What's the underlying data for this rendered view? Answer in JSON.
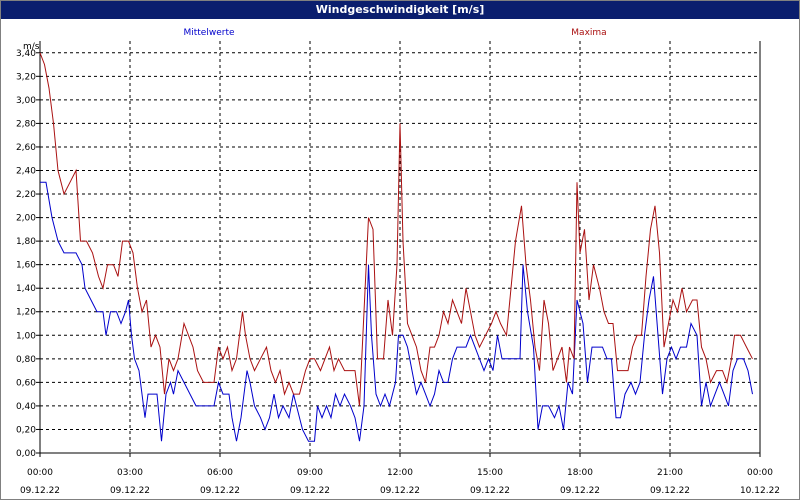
{
  "window": {
    "title": "Windgeschwindigkeit [m/s]"
  },
  "colors": {
    "mean": "#0000cc",
    "max": "#aa1111",
    "grid": "#000000",
    "title_bg": "#0a1e6e"
  },
  "chart_data": {
    "type": "line",
    "title": "Windgeschwindigkeit [m/s]",
    "ylabel": "m/s",
    "xlabel": "",
    "ylim": [
      0,
      3.5
    ],
    "xlim_hours": [
      0,
      24
    ],
    "grid": true,
    "legend_placement": "top",
    "y_ticks": [
      "0,00",
      "0,20",
      "0,40",
      "0,60",
      "0,80",
      "1,00",
      "1,20",
      "1,40",
      "1,60",
      "1,80",
      "2,00",
      "2,20",
      "2,40",
      "2,60",
      "2,80",
      "3,00",
      "3,20",
      "3,40"
    ],
    "x_ticks": [
      {
        "time": "00:00",
        "date": "09.12.22"
      },
      {
        "time": "03:00",
        "date": "09.12.22"
      },
      {
        "time": "06:00",
        "date": "09.12.22"
      },
      {
        "time": "09:00",
        "date": "09.12.22"
      },
      {
        "time": "12:00",
        "date": "09.12.22"
      },
      {
        "time": "15:00",
        "date": "09.12.22"
      },
      {
        "time": "18:00",
        "date": "09.12.22"
      },
      {
        "time": "21:00",
        "date": "09.12.22"
      },
      {
        "time": "00:00",
        "date": "10.12.22"
      }
    ],
    "series": [
      {
        "name": "Mittelwerte",
        "color": "#0000cc",
        "points": [
          [
            0,
            2.3
          ],
          [
            0.2,
            2.3
          ],
          [
            0.4,
            2.0
          ],
          [
            0.6,
            1.8
          ],
          [
            0.8,
            1.7
          ],
          [
            1.2,
            1.7
          ],
          [
            1.4,
            1.6
          ],
          [
            1.5,
            1.4
          ],
          [
            1.7,
            1.3
          ],
          [
            1.9,
            1.2
          ],
          [
            2.1,
            1.2
          ],
          [
            2.2,
            1.0
          ],
          [
            2.35,
            1.2
          ],
          [
            2.55,
            1.2
          ],
          [
            2.7,
            1.1
          ],
          [
            2.85,
            1.2
          ],
          [
            2.95,
            1.3
          ],
          [
            3.05,
            1.0
          ],
          [
            3.15,
            0.8
          ],
          [
            3.3,
            0.7
          ],
          [
            3.5,
            0.3
          ],
          [
            3.6,
            0.5
          ],
          [
            3.75,
            0.5
          ],
          [
            3.9,
            0.5
          ],
          [
            4.05,
            0.1
          ],
          [
            4.2,
            0.5
          ],
          [
            4.35,
            0.6
          ],
          [
            4.45,
            0.5
          ],
          [
            4.6,
            0.7
          ],
          [
            4.8,
            0.6
          ],
          [
            5.0,
            0.5
          ],
          [
            5.2,
            0.4
          ],
          [
            5.5,
            0.4
          ],
          [
            5.8,
            0.4
          ],
          [
            5.95,
            0.6
          ],
          [
            6.1,
            0.5
          ],
          [
            6.3,
            0.5
          ],
          [
            6.4,
            0.3
          ],
          [
            6.55,
            0.1
          ],
          [
            6.7,
            0.3
          ],
          [
            6.9,
            0.7
          ],
          [
            7.0,
            0.6
          ],
          [
            7.15,
            0.4
          ],
          [
            7.35,
            0.3
          ],
          [
            7.5,
            0.2
          ],
          [
            7.65,
            0.3
          ],
          [
            7.8,
            0.5
          ],
          [
            7.95,
            0.3
          ],
          [
            8.1,
            0.4
          ],
          [
            8.3,
            0.3
          ],
          [
            8.45,
            0.5
          ],
          [
            8.55,
            0.4
          ],
          [
            8.75,
            0.2
          ],
          [
            8.95,
            0.1
          ],
          [
            9.05,
            0.1
          ],
          [
            9.15,
            0.1
          ],
          [
            9.25,
            0.4
          ],
          [
            9.4,
            0.3
          ],
          [
            9.55,
            0.4
          ],
          [
            9.7,
            0.3
          ],
          [
            9.85,
            0.5
          ],
          [
            10.0,
            0.4
          ],
          [
            10.15,
            0.5
          ],
          [
            10.35,
            0.4
          ],
          [
            10.5,
            0.3
          ],
          [
            10.65,
            0.1
          ],
          [
            10.8,
            0.4
          ],
          [
            10.95,
            1.6
          ],
          [
            11.05,
            1.0
          ],
          [
            11.2,
            0.5
          ],
          [
            11.35,
            0.4
          ],
          [
            11.5,
            0.5
          ],
          [
            11.65,
            0.4
          ],
          [
            11.85,
            0.6
          ],
          [
            11.95,
            1.0
          ],
          [
            12.1,
            1.0
          ],
          [
            12.25,
            0.9
          ],
          [
            12.4,
            0.7
          ],
          [
            12.55,
            0.5
          ],
          [
            12.7,
            0.6
          ],
          [
            12.85,
            0.5
          ],
          [
            13.0,
            0.4
          ],
          [
            13.15,
            0.5
          ],
          [
            13.3,
            0.7
          ],
          [
            13.45,
            0.6
          ],
          [
            13.6,
            0.6
          ],
          [
            13.75,
            0.8
          ],
          [
            13.9,
            0.9
          ],
          [
            14.05,
            0.9
          ],
          [
            14.2,
            0.9
          ],
          [
            14.35,
            1.0
          ],
          [
            14.5,
            0.9
          ],
          [
            14.65,
            0.8
          ],
          [
            14.8,
            0.7
          ],
          [
            14.95,
            0.8
          ],
          [
            15.1,
            0.7
          ],
          [
            15.25,
            1.0
          ],
          [
            15.4,
            0.8
          ],
          [
            15.6,
            0.8
          ],
          [
            15.75,
            0.8
          ],
          [
            15.9,
            0.8
          ],
          [
            16.0,
            0.8
          ],
          [
            16.1,
            1.6
          ],
          [
            16.25,
            1.2
          ],
          [
            16.45,
            0.9
          ],
          [
            16.6,
            0.2
          ],
          [
            16.75,
            0.4
          ],
          [
            16.95,
            0.4
          ],
          [
            17.15,
            0.3
          ],
          [
            17.3,
            0.4
          ],
          [
            17.45,
            0.2
          ],
          [
            17.6,
            0.6
          ],
          [
            17.75,
            0.5
          ],
          [
            17.9,
            1.3
          ],
          [
            18.1,
            1.1
          ],
          [
            18.25,
            0.6
          ],
          [
            18.4,
            0.9
          ],
          [
            18.55,
            0.9
          ],
          [
            18.75,
            0.9
          ],
          [
            18.9,
            0.8
          ],
          [
            19.05,
            0.8
          ],
          [
            19.2,
            0.3
          ],
          [
            19.35,
            0.3
          ],
          [
            19.5,
            0.5
          ],
          [
            19.7,
            0.6
          ],
          [
            19.85,
            0.5
          ],
          [
            20.0,
            0.6
          ],
          [
            20.15,
            1.0
          ],
          [
            20.3,
            1.3
          ],
          [
            20.45,
            1.5
          ],
          [
            20.6,
            1.0
          ],
          [
            20.75,
            0.5
          ],
          [
            20.9,
            0.8
          ],
          [
            21.05,
            0.9
          ],
          [
            21.2,
            0.8
          ],
          [
            21.35,
            0.9
          ],
          [
            21.55,
            0.9
          ],
          [
            21.7,
            1.1
          ],
          [
            21.9,
            1.0
          ],
          [
            22.05,
            0.4
          ],
          [
            22.2,
            0.6
          ],
          [
            22.35,
            0.4
          ],
          [
            22.5,
            0.5
          ],
          [
            22.65,
            0.6
          ],
          [
            22.8,
            0.5
          ],
          [
            22.95,
            0.4
          ],
          [
            23.1,
            0.7
          ],
          [
            23.25,
            0.8
          ],
          [
            23.45,
            0.8
          ],
          [
            23.6,
            0.7
          ],
          [
            23.75,
            0.5
          ]
        ]
      },
      {
        "name": "Maxima",
        "color": "#aa1111",
        "points": [
          [
            0,
            3.4
          ],
          [
            0.15,
            3.3
          ],
          [
            0.3,
            3.1
          ],
          [
            0.45,
            2.8
          ],
          [
            0.6,
            2.4
          ],
          [
            0.8,
            2.2
          ],
          [
            1.0,
            2.3
          ],
          [
            1.2,
            2.4
          ],
          [
            1.35,
            1.8
          ],
          [
            1.55,
            1.8
          ],
          [
            1.75,
            1.7
          ],
          [
            1.95,
            1.5
          ],
          [
            2.1,
            1.4
          ],
          [
            2.25,
            1.6
          ],
          [
            2.45,
            1.6
          ],
          [
            2.6,
            1.5
          ],
          [
            2.75,
            1.8
          ],
          [
            2.95,
            1.8
          ],
          [
            3.1,
            1.7
          ],
          [
            3.25,
            1.4
          ],
          [
            3.4,
            1.2
          ],
          [
            3.55,
            1.3
          ],
          [
            3.7,
            0.9
          ],
          [
            3.85,
            1.0
          ],
          [
            4.0,
            0.9
          ],
          [
            4.15,
            0.5
          ],
          [
            4.3,
            0.8
          ],
          [
            4.45,
            0.7
          ],
          [
            4.6,
            0.8
          ],
          [
            4.8,
            1.1
          ],
          [
            4.95,
            1.0
          ],
          [
            5.1,
            0.9
          ],
          [
            5.25,
            0.7
          ],
          [
            5.45,
            0.6
          ],
          [
            5.65,
            0.6
          ],
          [
            5.8,
            0.6
          ],
          [
            5.95,
            0.9
          ],
          [
            6.1,
            0.8
          ],
          [
            6.25,
            0.9
          ],
          [
            6.4,
            0.7
          ],
          [
            6.55,
            0.8
          ],
          [
            6.75,
            1.2
          ],
          [
            6.85,
            1.0
          ],
          [
            7.0,
            0.8
          ],
          [
            7.15,
            0.7
          ],
          [
            7.35,
            0.8
          ],
          [
            7.55,
            0.9
          ],
          [
            7.7,
            0.7
          ],
          [
            7.85,
            0.6
          ],
          [
            8.0,
            0.7
          ],
          [
            8.15,
            0.5
          ],
          [
            8.3,
            0.6
          ],
          [
            8.45,
            0.5
          ],
          [
            8.65,
            0.5
          ],
          [
            8.85,
            0.7
          ],
          [
            9.0,
            0.8
          ],
          [
            9.15,
            0.8
          ],
          [
            9.35,
            0.7
          ],
          [
            9.5,
            0.8
          ],
          [
            9.65,
            0.9
          ],
          [
            9.8,
            0.7
          ],
          [
            9.95,
            0.8
          ],
          [
            10.15,
            0.7
          ],
          [
            10.35,
            0.7
          ],
          [
            10.5,
            0.7
          ],
          [
            10.65,
            0.4
          ],
          [
            10.8,
            1.2
          ],
          [
            10.95,
            2.0
          ],
          [
            11.1,
            1.9
          ],
          [
            11.25,
            0.8
          ],
          [
            11.45,
            0.8
          ],
          [
            11.6,
            1.3
          ],
          [
            11.75,
            1.0
          ],
          [
            11.9,
            1.6
          ],
          [
            12.0,
            2.8
          ],
          [
            12.1,
            1.8
          ],
          [
            12.25,
            1.1
          ],
          [
            12.4,
            1.0
          ],
          [
            12.55,
            0.9
          ],
          [
            12.7,
            0.7
          ],
          [
            12.85,
            0.6
          ],
          [
            13.0,
            0.9
          ],
          [
            13.15,
            0.9
          ],
          [
            13.3,
            1.0
          ],
          [
            13.45,
            1.2
          ],
          [
            13.6,
            1.1
          ],
          [
            13.75,
            1.3
          ],
          [
            13.9,
            1.2
          ],
          [
            14.05,
            1.1
          ],
          [
            14.2,
            1.4
          ],
          [
            14.35,
            1.2
          ],
          [
            14.5,
            1.0
          ],
          [
            14.65,
            0.9
          ],
          [
            14.85,
            1.0
          ],
          [
            15.05,
            1.1
          ],
          [
            15.2,
            1.2
          ],
          [
            15.35,
            1.1
          ],
          [
            15.55,
            1.0
          ],
          [
            15.7,
            1.4
          ],
          [
            15.85,
            1.8
          ],
          [
            16.05,
            2.1
          ],
          [
            16.2,
            1.6
          ],
          [
            16.35,
            1.3
          ],
          [
            16.5,
            0.9
          ],
          [
            16.65,
            0.7
          ],
          [
            16.8,
            1.3
          ],
          [
            16.95,
            1.1
          ],
          [
            17.1,
            0.7
          ],
          [
            17.25,
            0.8
          ],
          [
            17.4,
            0.9
          ],
          [
            17.55,
            0.6
          ],
          [
            17.65,
            0.9
          ],
          [
            17.8,
            0.8
          ],
          [
            17.9,
            2.3
          ],
          [
            18.0,
            1.7
          ],
          [
            18.15,
            1.9
          ],
          [
            18.3,
            1.3
          ],
          [
            18.45,
            1.6
          ],
          [
            18.65,
            1.4
          ],
          [
            18.8,
            1.2
          ],
          [
            18.95,
            1.1
          ],
          [
            19.1,
            1.1
          ],
          [
            19.25,
            0.7
          ],
          [
            19.4,
            0.7
          ],
          [
            19.6,
            0.7
          ],
          [
            19.75,
            0.9
          ],
          [
            19.9,
            1.0
          ],
          [
            20.05,
            1.0
          ],
          [
            20.2,
            1.5
          ],
          [
            20.35,
            1.9
          ],
          [
            20.5,
            2.1
          ],
          [
            20.65,
            1.7
          ],
          [
            20.8,
            0.9
          ],
          [
            20.95,
            1.1
          ],
          [
            21.1,
            1.3
          ],
          [
            21.25,
            1.2
          ],
          [
            21.4,
            1.4
          ],
          [
            21.55,
            1.2
          ],
          [
            21.75,
            1.3
          ],
          [
            21.9,
            1.3
          ],
          [
            22.05,
            0.9
          ],
          [
            22.2,
            0.8
          ],
          [
            22.35,
            0.6
          ],
          [
            22.55,
            0.7
          ],
          [
            22.75,
            0.7
          ],
          [
            22.9,
            0.6
          ],
          [
            23.05,
            0.8
          ],
          [
            23.15,
            1.0
          ],
          [
            23.35,
            1.0
          ],
          [
            23.55,
            0.9
          ],
          [
            23.75,
            0.8
          ]
        ]
      }
    ]
  }
}
